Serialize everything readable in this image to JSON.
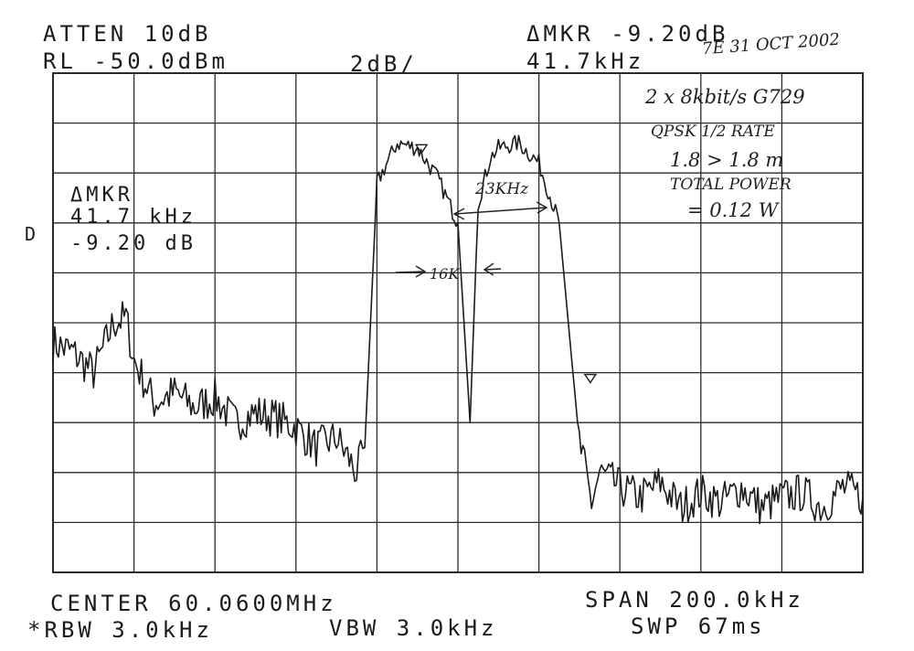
{
  "header": {
    "atten": "ATTEN 10dB",
    "ref_level": "RL -50.0dBm",
    "scale": "2dB/",
    "delta_marker": "ΔMKR -9.20dB",
    "delta_freq": "41.7kHz"
  },
  "marker_box": {
    "label": "ΔMKR",
    "freq": "41.7 kHz",
    "level": "-9.20 dB"
  },
  "detector_symbol": "D",
  "footer": {
    "center": "CENTER 60.0600MHz",
    "span": "SPAN 200.0kHz",
    "rbw": "*RBW 3.0kHz",
    "vbw": "VBW 3.0kHz",
    "sweep": "SWP 67ms"
  },
  "annotations": {
    "date": "7E 31 OCT 2002",
    "line1": "2 x 8kbit/s G729",
    "line2": "QPSK 1/2 RATE",
    "line3": "1.8 > 1.8 m",
    "line4": "TOTAL POWER",
    "line5": "= 0.12 W",
    "spacing": "23KHz",
    "bandwidth": "16K"
  },
  "colors": {
    "trace": "#1c1c1c",
    "grid": "#2a2a2a",
    "background": "#ffffff"
  },
  "chart_data": {
    "type": "line",
    "title": "",
    "xlabel": "",
    "ylabel": "",
    "x_unit": "MHz",
    "y_unit": "dBm",
    "xlim": [
      59.96,
      60.16
    ],
    "ylim": [
      -70,
      -50
    ],
    "grid": true,
    "x_divisions": 10,
    "y_divisions": 10,
    "series": [
      {
        "x": [
          59.96,
          59.965,
          59.97,
          59.975,
          59.978,
          59.98,
          59.985,
          59.99,
          59.995,
          60.0,
          60.005,
          60.01,
          60.015,
          60.02,
          60.025,
          60.03,
          60.035,
          60.037,
          60.04,
          60.045,
          60.05,
          60.055,
          60.06,
          60.063,
          60.065,
          60.068,
          60.07,
          60.075,
          60.08,
          60.085,
          60.09,
          60.093,
          60.095,
          60.1,
          60.105,
          60.11,
          60.115,
          60.12,
          60.125,
          60.13,
          60.135,
          60.14,
          60.145,
          60.15,
          60.155,
          60.16
        ],
        "y": [
          -60.8,
          -61.2,
          -62.0,
          -60.0,
          -59.8,
          -61.5,
          -63.2,
          -62.8,
          -63.4,
          -63.0,
          -64.0,
          -63.6,
          -63.8,
          -64.2,
          -65.0,
          -64.6,
          -66.0,
          -65.0,
          -54.4,
          -52.8,
          -53.0,
          -54.2,
          -56.0,
          -64.0,
          -55.2,
          -53.4,
          -53.0,
          -52.8,
          -53.6,
          -56.0,
          -64.8,
          -67.2,
          -66.0,
          -66.6,
          -67.0,
          -66.4,
          -67.4,
          -66.8,
          -67.2,
          -66.6,
          -67.4,
          -67.0,
          -66.8,
          -67.4,
          -66.6,
          -67.0
        ]
      }
    ],
    "markers": [
      {
        "name": "reference",
        "x": 60.051,
        "y": -53.2
      },
      {
        "name": "delta",
        "x": 60.0927,
        "y": -62.4
      }
    ]
  }
}
